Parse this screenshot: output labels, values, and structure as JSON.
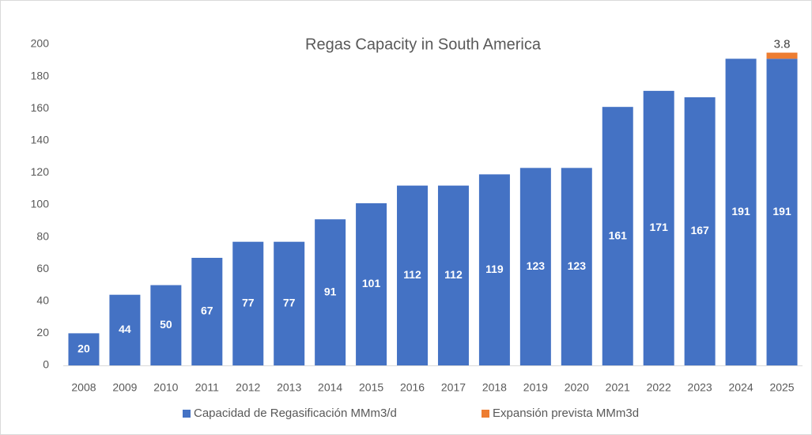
{
  "chart_data": {
    "type": "stacked_bar",
    "title": "Regas Capacity in South America",
    "categories": [
      "2008",
      "2009",
      "2010",
      "2011",
      "2012",
      "2013",
      "2014",
      "2015",
      "2016",
      "2017",
      "2018",
      "2019",
      "2020",
      "2021",
      "2022",
      "2023",
      "2024",
      "2025"
    ],
    "series": [
      {
        "name": "Capacidad de Regasificación MMm3/d",
        "color": "#4472c4",
        "values": [
          20,
          44,
          50,
          67,
          77,
          77,
          91,
          101,
          112,
          112,
          119,
          123,
          123,
          161,
          171,
          167,
          191,
          191
        ]
      },
      {
        "name": "Expansión prevista  MMm3d",
        "color": "#ed7d31",
        "values": [
          null,
          null,
          null,
          null,
          null,
          null,
          null,
          null,
          null,
          null,
          null,
          null,
          null,
          null,
          null,
          null,
          null,
          3.8
        ]
      }
    ],
    "ylim": [
      0,
      200
    ],
    "yticks": [
      0,
      20,
      40,
      60,
      80,
      100,
      120,
      140,
      160,
      180,
      200
    ],
    "grid": false,
    "legend": "bottom"
  }
}
